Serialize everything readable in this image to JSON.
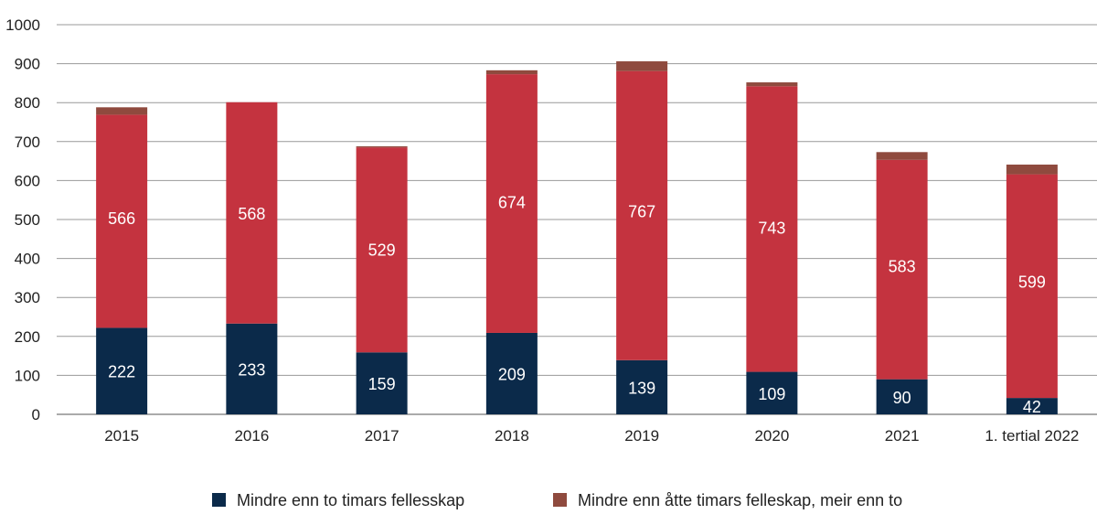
{
  "chart_data": {
    "type": "bar",
    "stacked": true,
    "categories": [
      "2015",
      "2016",
      "2017",
      "2018",
      "2019",
      "2020",
      "2021",
      "1. tertial 2022"
    ],
    "series": [
      {
        "name": "Mindre enn to timars fellesskap",
        "color": "#0b2a4a",
        "values": [
          222,
          233,
          159,
          209,
          139,
          109,
          90,
          42
        ],
        "labelled": true
      },
      {
        "name": "",
        "color": "#c4333f",
        "values": [
          566,
          568,
          529,
          674,
          767,
          743,
          583,
          599
        ],
        "labelled": true
      },
      {
        "name": "Mindre enn åtte timars felleskap, meir enn to",
        "color": "#8f4a3e",
        "values": [
          19,
          0,
          3,
          10,
          25,
          10,
          20,
          25
        ],
        "labelled": false
      }
    ],
    "legend": [
      "Mindre enn to timars fellesskap",
      "Mindre enn åtte timars felleskap, meir enn to"
    ],
    "legend_colors": [
      "#0b2a4a",
      "#8f4a3e"
    ],
    "legend_placement": "bottom",
    "ylim": [
      0,
      1000
    ],
    "yticks": [
      0,
      100,
      200,
      300,
      400,
      500,
      600,
      700,
      800,
      900,
      1000
    ],
    "grid": true,
    "title": "",
    "xlabel": "",
    "ylabel": ""
  }
}
